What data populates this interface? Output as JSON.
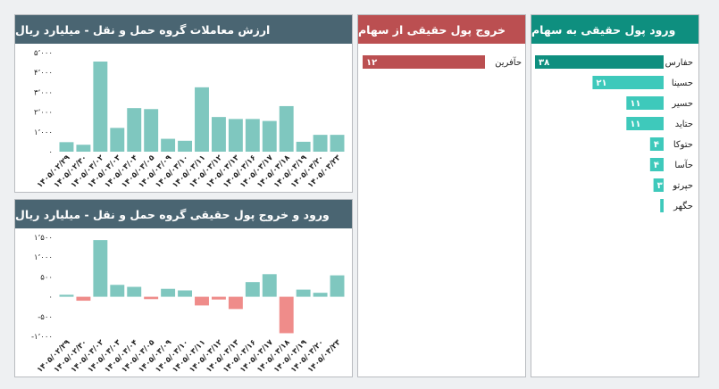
{
  "panels": {
    "turnover": {
      "title": "ارزش معاملات گروه حمل و نقل - میلیارد ریال"
    },
    "net_flow": {
      "title": "ورود و خروج پول حقیقی گروه حمل و نقل - میلیارد ریال"
    },
    "outflow": {
      "title": "خروج پول حقیقی از سهام"
    },
    "inflow": {
      "title": "ورود پول حقیقی به سهام"
    }
  },
  "colors": {
    "header_dark": "#4a6572",
    "header_red": "#bb4f51",
    "header_teal": "#0e8f7f",
    "bar_teal": "#7fc7bf",
    "bar_red": "#ef8c8a",
    "inflow_top": "#0e8f7f",
    "inflow_bar": "#3ec9bb",
    "outflow_bar": "#bb4f51"
  },
  "chart_data": [
    {
      "id": "turnover",
      "type": "bar",
      "title": "ارزش معاملات گروه حمل و نقل - میلیارد ریال",
      "categories": [
        "۱۴۰۵/۰۲/۲۹",
        "۱۴۰۵/۰۲/۳۰",
        "۱۴۰۵/۰۳/۰۲",
        "۱۴۰۵/۰۳/۰۳",
        "۱۴۰۵/۰۳/۰۴",
        "۱۴۰۵/۰۳/۰۵",
        "۱۴۰۵/۰۳/۰۹",
        "۱۴۰۵/۰۳/۱۰",
        "۱۴۰۵/۰۳/۱۱",
        "۱۴۰۵/۰۳/۱۲",
        "۱۴۰۵/۰۳/۱۳",
        "۱۴۰۵/۰۳/۱۶",
        "۱۴۰۵/۰۳/۱۷",
        "۱۴۰۵/۰۳/۱۸",
        "۱۴۰۵/۰۳/۱۹",
        "۱۴۰۵/۰۳/۲۰",
        "۱۴۰۵/۰۳/۲۳"
      ],
      "values": [
        480,
        350,
        4550,
        1200,
        2200,
        2150,
        650,
        550,
        3250,
        1750,
        1650,
        1650,
        1550,
        2300,
        500,
        850,
        850
      ],
      "ylim": [
        0,
        5000
      ],
      "yticks": [
        0,
        1000,
        2000,
        3000,
        4000,
        5000
      ],
      "ytick_labels": [
        "۰",
        "۱٬۰۰۰",
        "۲٬۰۰۰",
        "۳٬۰۰۰",
        "۴٬۰۰۰",
        "۵٬۰۰۰"
      ],
      "grid": false
    },
    {
      "id": "net_flow",
      "type": "bar",
      "title": "ورود و خروج پول حقیقی گروه حمل و نقل - میلیارد ریال",
      "categories": [
        "۱۴۰۵/۰۲/۲۹",
        "۱۴۰۵/۰۲/۳۰",
        "۱۴۰۵/۰۳/۰۲",
        "۱۴۰۵/۰۳/۰۳",
        "۱۴۰۵/۰۳/۰۴",
        "۱۴۰۵/۰۳/۰۵",
        "۱۴۰۵/۰۳/۰۹",
        "۱۴۰۵/۰۳/۱۰",
        "۱۴۰۵/۰۳/۱۱",
        "۱۴۰۵/۰۳/۱۲",
        "۱۴۰۵/۰۳/۱۳",
        "۱۴۰۵/۰۳/۱۶",
        "۱۴۰۵/۰۳/۱۷",
        "۱۴۰۵/۰۳/۱۸",
        "۱۴۰۵/۰۳/۱۹",
        "۱۴۰۵/۰۳/۲۰",
        "۱۴۰۵/۰۳/۲۳"
      ],
      "values": [
        50,
        -100,
        1430,
        300,
        250,
        -60,
        200,
        160,
        -220,
        -70,
        -310,
        370,
        570,
        -920,
        180,
        100,
        540
      ],
      "ylim": [
        -1000,
        1500
      ],
      "yticks": [
        -1000,
        -500,
        0,
        500,
        1000,
        1500
      ],
      "ytick_labels": [
        "-۱٬۰۰۰",
        "-۵۰۰",
        "۰",
        "۵۰۰",
        "۱٬۰۰۰",
        "۱٬۵۰۰"
      ],
      "grid": false
    },
    {
      "id": "outflow",
      "type": "bar",
      "orientation": "horizontal",
      "title": "خروج پول حقیقی از سهام",
      "categories": [
        "حآفرین"
      ],
      "values": [
        12
      ],
      "value_labels": [
        "۱۲"
      ]
    },
    {
      "id": "inflow",
      "type": "bar",
      "orientation": "horizontal",
      "title": "ورود پول حقیقی به سهام",
      "categories": [
        "حفارس",
        "حسینا",
        "حسیر",
        "حتاید",
        "حتوکا",
        "حآسا",
        "حپرتو",
        "حگهر"
      ],
      "values": [
        38,
        21,
        11,
        11,
        4,
        4,
        3,
        1
      ],
      "value_labels": [
        "۳۸",
        "۲۱",
        "۱۱",
        "۱۱",
        "۴",
        "۴",
        "۳",
        "۱"
      ]
    }
  ]
}
